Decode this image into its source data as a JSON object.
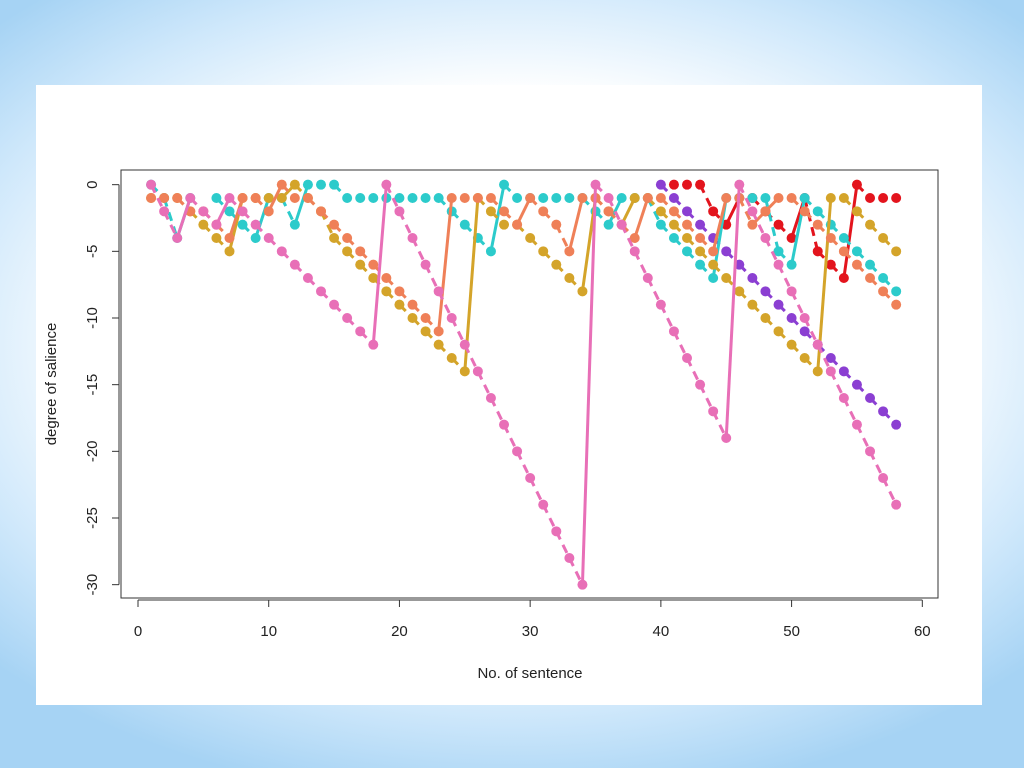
{
  "chart_data": {
    "type": "scatter",
    "x_label": "No. of sentence",
    "y_label": "degree of salience",
    "xlim": [
      -1.3,
      61.2
    ],
    "ylim": [
      -31.0,
      1.1
    ],
    "xticks": [
      0,
      10,
      20,
      30,
      40,
      50,
      60
    ],
    "yticks": [
      0,
      -5,
      -10,
      -15,
      -20,
      -25,
      -30
    ],
    "x": [
      1,
      2,
      3,
      4,
      5,
      6,
      7,
      8,
      9,
      10,
      11,
      12,
      13,
      14,
      15,
      16,
      17,
      18,
      19,
      20,
      21,
      22,
      23,
      24,
      25,
      26,
      27,
      28,
      29,
      30,
      31,
      32,
      33,
      34,
      35,
      36,
      37,
      38,
      39,
      40,
      41,
      42,
      43,
      44,
      45,
      46,
      47,
      48,
      49,
      50,
      51,
      52,
      53,
      54,
      55,
      56,
      57,
      58
    ],
    "series": [
      {
        "color": "#8b3fd2",
        "values": [
          null,
          null,
          null,
          null,
          null,
          null,
          null,
          null,
          null,
          null,
          null,
          null,
          null,
          null,
          null,
          null,
          null,
          null,
          null,
          null,
          null,
          null,
          null,
          null,
          null,
          null,
          null,
          null,
          null,
          null,
          null,
          null,
          null,
          null,
          null,
          null,
          null,
          null,
          null,
          0,
          -1,
          -2,
          -3,
          -4,
          -5,
          -6,
          -7,
          -8,
          -9,
          -10,
          -11,
          -12,
          -13,
          -14,
          -15,
          -16,
          -17,
          -18
        ]
      },
      {
        "color": "#e3141d",
        "values": [
          null,
          null,
          null,
          null,
          null,
          null,
          null,
          null,
          null,
          null,
          null,
          null,
          null,
          null,
          null,
          null,
          null,
          null,
          null,
          null,
          null,
          null,
          null,
          null,
          null,
          null,
          null,
          null,
          null,
          null,
          null,
          null,
          null,
          null,
          null,
          null,
          null,
          null,
          null,
          null,
          0,
          0,
          0,
          -2,
          -3,
          -1,
          -1,
          -2,
          -3,
          -4,
          -1,
          -5,
          -6,
          -7,
          0,
          -1,
          -1,
          -1
        ]
      },
      {
        "color": "#2ccbcb",
        "values": [
          0,
          -1,
          -4,
          -1,
          null,
          -1,
          -2,
          -3,
          -4,
          -1,
          -1,
          -3,
          0,
          0,
          0,
          -1,
          -1,
          -1,
          -1,
          -1,
          -1,
          -1,
          -1,
          -2,
          -3,
          -4,
          -5,
          0,
          -1,
          -1,
          -1,
          -1,
          -1,
          -1,
          -2,
          -3,
          -1,
          -1,
          -1,
          -3,
          -4,
          -5,
          -6,
          -7,
          -1,
          -1,
          -1,
          -1,
          -5,
          -6,
          -1,
          -2,
          -3,
          -4,
          -5,
          -6,
          -7,
          -8
        ]
      },
      {
        "color": "#d4a42a",
        "values": [
          -1,
          -1,
          -1,
          -2,
          -3,
          -4,
          -5,
          -1,
          -1,
          -1,
          -1,
          0,
          -1,
          -2,
          -4,
          -5,
          -6,
          -7,
          -8,
          -9,
          -10,
          -11,
          -12,
          -13,
          -14,
          -1,
          -2,
          -3,
          -3,
          -4,
          -5,
          -6,
          -7,
          -8,
          -1,
          -2,
          -3,
          -1,
          -1,
          -2,
          -3,
          -4,
          -5,
          -6,
          -7,
          -8,
          -9,
          -10,
          -11,
          -12,
          -13,
          -14,
          -1,
          -1,
          -2,
          -3,
          -4,
          -5
        ]
      },
      {
        "color": "#ef8058",
        "values": [
          -1,
          -1,
          -1,
          -2,
          -2,
          -3,
          -4,
          -1,
          -1,
          -2,
          0,
          -1,
          -1,
          -2,
          -3,
          -4,
          -5,
          -6,
          -7,
          -8,
          -9,
          -10,
          -11,
          -1,
          -1,
          -1,
          -1,
          -2,
          -3,
          -1,
          -2,
          -3,
          -5,
          -1,
          -1,
          -2,
          -3,
          -4,
          -1,
          -1,
          -2,
          -3,
          -4,
          -5,
          -1,
          -1,
          -3,
          -2,
          -1,
          -1,
          -2,
          -3,
          -4,
          -5,
          -6,
          -7,
          -8,
          -9
        ]
      },
      {
        "color": "#e86fb7",
        "values": [
          0,
          -2,
          -4,
          -1,
          -2,
          -3,
          -1,
          -2,
          -3,
          -4,
          -5,
          -6,
          -7,
          -8,
          -9,
          -10,
          -11,
          -12,
          0,
          -2,
          -4,
          -6,
          -8,
          -10,
          -12,
          -14,
          -16,
          -18,
          -20,
          -22,
          -24,
          -26,
          -28,
          -30,
          0,
          -1,
          -3,
          -5,
          -7,
          -9,
          -11,
          -13,
          -15,
          -17,
          -19,
          0,
          -2,
          -4,
          -6,
          -8,
          -10,
          -12,
          -14,
          -16,
          -18,
          -20,
          -22,
          -24
        ]
      }
    ]
  }
}
